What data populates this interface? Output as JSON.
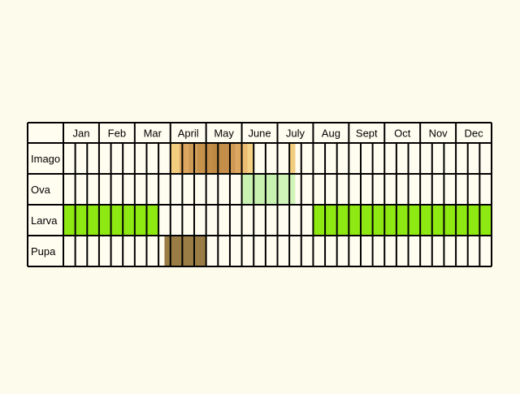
{
  "chart_data": {
    "type": "table",
    "months": [
      "Jan",
      "Feb",
      "Mar",
      "April",
      "May",
      "June",
      "July",
      "Aug",
      "Sept",
      "Oct",
      "Nov",
      "Dec"
    ],
    "periods_per_month": 3,
    "stages": [
      {
        "name": "Imago",
        "cells": [
          {
            "start": 9.0,
            "end": 9.75,
            "color": "#f3cd7e"
          },
          {
            "start": 9.75,
            "end": 10.5,
            "color": "#dca65f"
          },
          {
            "start": 10.5,
            "end": 11.25,
            "color": "#cf9a55"
          },
          {
            "start": 11.25,
            "end": 12.0,
            "color": "#c6914b"
          },
          {
            "start": 12.0,
            "end": 12.5,
            "color": "#c48e49"
          },
          {
            "start": 12.5,
            "end": 13.0,
            "color": "#bd8945"
          },
          {
            "start": 13.0,
            "end": 14.0,
            "color": "#c48e49"
          },
          {
            "start": 14.0,
            "end": 14.5,
            "color": "#cf9a55"
          },
          {
            "start": 14.5,
            "end": 15.0,
            "color": "#dca65f"
          },
          {
            "start": 15.0,
            "end": 15.5,
            "color": "#ebbd72"
          },
          {
            "start": 15.5,
            "end": 16.0,
            "color": "#f5d283"
          },
          {
            "start": 19.0,
            "end": 19.5,
            "color": "#f3cd7e"
          }
        ]
      },
      {
        "name": "Ova",
        "cells": [
          {
            "start": 15.0,
            "end": 18.0,
            "color": "#c8f2b0"
          },
          {
            "start": 18.0,
            "end": 19.5,
            "color": "#d0f4b8"
          }
        ]
      },
      {
        "name": "Larva",
        "cells": [
          {
            "start": 0.0,
            "end": 8.0,
            "color": "#8ee812"
          },
          {
            "start": 21.0,
            "end": 36.0,
            "color": "#8ee812"
          }
        ]
      },
      {
        "name": "Pupa",
        "cells": [
          {
            "start": 8.5,
            "end": 12.0,
            "color": "#9a7d45"
          }
        ]
      }
    ]
  }
}
